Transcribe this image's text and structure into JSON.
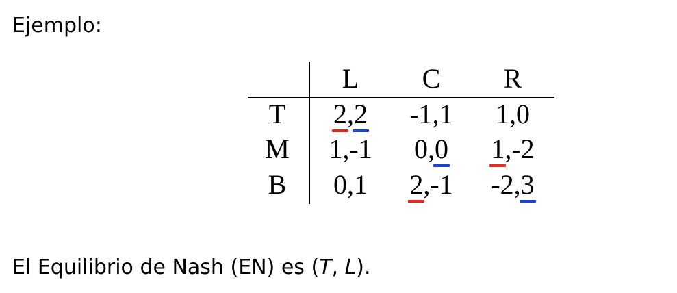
{
  "heading": "Ejemplo:",
  "matrix": {
    "columns": [
      "L",
      "C",
      "R"
    ],
    "rows": [
      {
        "label": "T",
        "cells": [
          {
            "a": "2",
            "b": "2"
          },
          {
            "a": "-1",
            "b": "1"
          },
          {
            "a": "1",
            "b": "0"
          }
        ]
      },
      {
        "label": "M",
        "cells": [
          {
            "a": "1",
            "b": "-1"
          },
          {
            "a": "0",
            "b": "0"
          },
          {
            "a": "1",
            "b": "-2"
          }
        ]
      },
      {
        "label": "B",
        "cells": [
          {
            "a": "0",
            "b": "1"
          },
          {
            "a": "2",
            "b": "-1"
          },
          {
            "a": "-2",
            "b": "3"
          }
        ]
      }
    ],
    "separator": ",",
    "underline_colors": {
      "row_player_best_response": "#e8261c",
      "column_player_best_response": "#1a45d6"
    }
  },
  "conclusion": {
    "prefix": "El Equilibrio de Nash (EN) es (",
    "row_strategy": "T",
    "comma": ", ",
    "col_strategy": "L",
    "suffix": ")."
  }
}
